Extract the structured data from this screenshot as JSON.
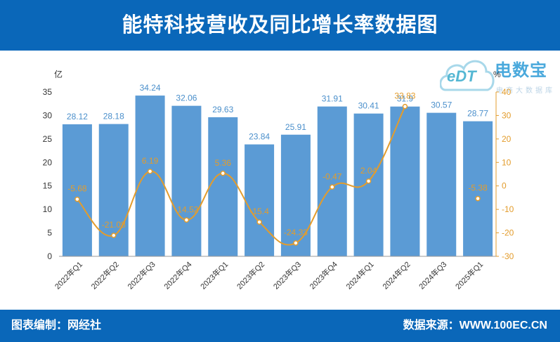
{
  "header": {
    "title": "能特科技营收及同比增长率数据图"
  },
  "footer": {
    "editor": "图表编制：网经社",
    "source": "数据来源：WWW.100EC.CN"
  },
  "logo": {
    "edt": "eDT",
    "name": "电数宝",
    "subtitle": "电商大数据库"
  },
  "colors": {
    "header_bg": "#0a67b9",
    "bar": "#5b9bd5",
    "line": "#e39c2c",
    "axis_right": "#e39c2c"
  },
  "icons": {
    "logo": "cloud-edt-logo-icon"
  },
  "chart_data": {
    "type": "bar+line",
    "categories": [
      "2022年Q1",
      "2022年Q2",
      "2022年Q3",
      "2022年Q4",
      "2023年Q1",
      "2023年Q2",
      "2023年Q3",
      "2023年Q4",
      "2024年Q1",
      "2024年Q2",
      "2024年Q3",
      "2025年Q1"
    ],
    "y_left_label": "亿",
    "y_right_label": "%",
    "y_left_range": [
      0,
      35
    ],
    "y_left_ticks": [
      0,
      5,
      10,
      15,
      20,
      25,
      30,
      35
    ],
    "y_right_range": [
      -30,
      40
    ],
    "y_right_ticks": [
      -30,
      -20,
      -10,
      0,
      10,
      20,
      30,
      40
    ],
    "series": [
      {
        "type": "bar",
        "axis": "left",
        "values": [
          28.12,
          28.18,
          34.24,
          32.06,
          29.63,
          23.84,
          25.91,
          31.91,
          30.41,
          31.9,
          30.57,
          28.77
        ],
        "labels": [
          "28.12",
          "28.18",
          "34.24",
          "32.06",
          "29.63",
          "23.84",
          "25.91",
          "31.91",
          "30.41",
          "31.9",
          "30.57",
          "28.77"
        ]
      },
      {
        "type": "line",
        "axis": "right",
        "values": [
          -5.68,
          -21.08,
          6.19,
          -14.52,
          5.36,
          -15.4,
          -24.33,
          -0.47,
          2.04,
          33.83,
          null,
          -5.38
        ],
        "labels": [
          "-5.68",
          "-21.08",
          "6.19",
          "-14.52",
          "5.36",
          "-15.4",
          "-24.33",
          "-0.47",
          "2.04",
          "33.83",
          "",
          "-5.38"
        ]
      }
    ],
    "grid": false,
    "legend": "none"
  }
}
